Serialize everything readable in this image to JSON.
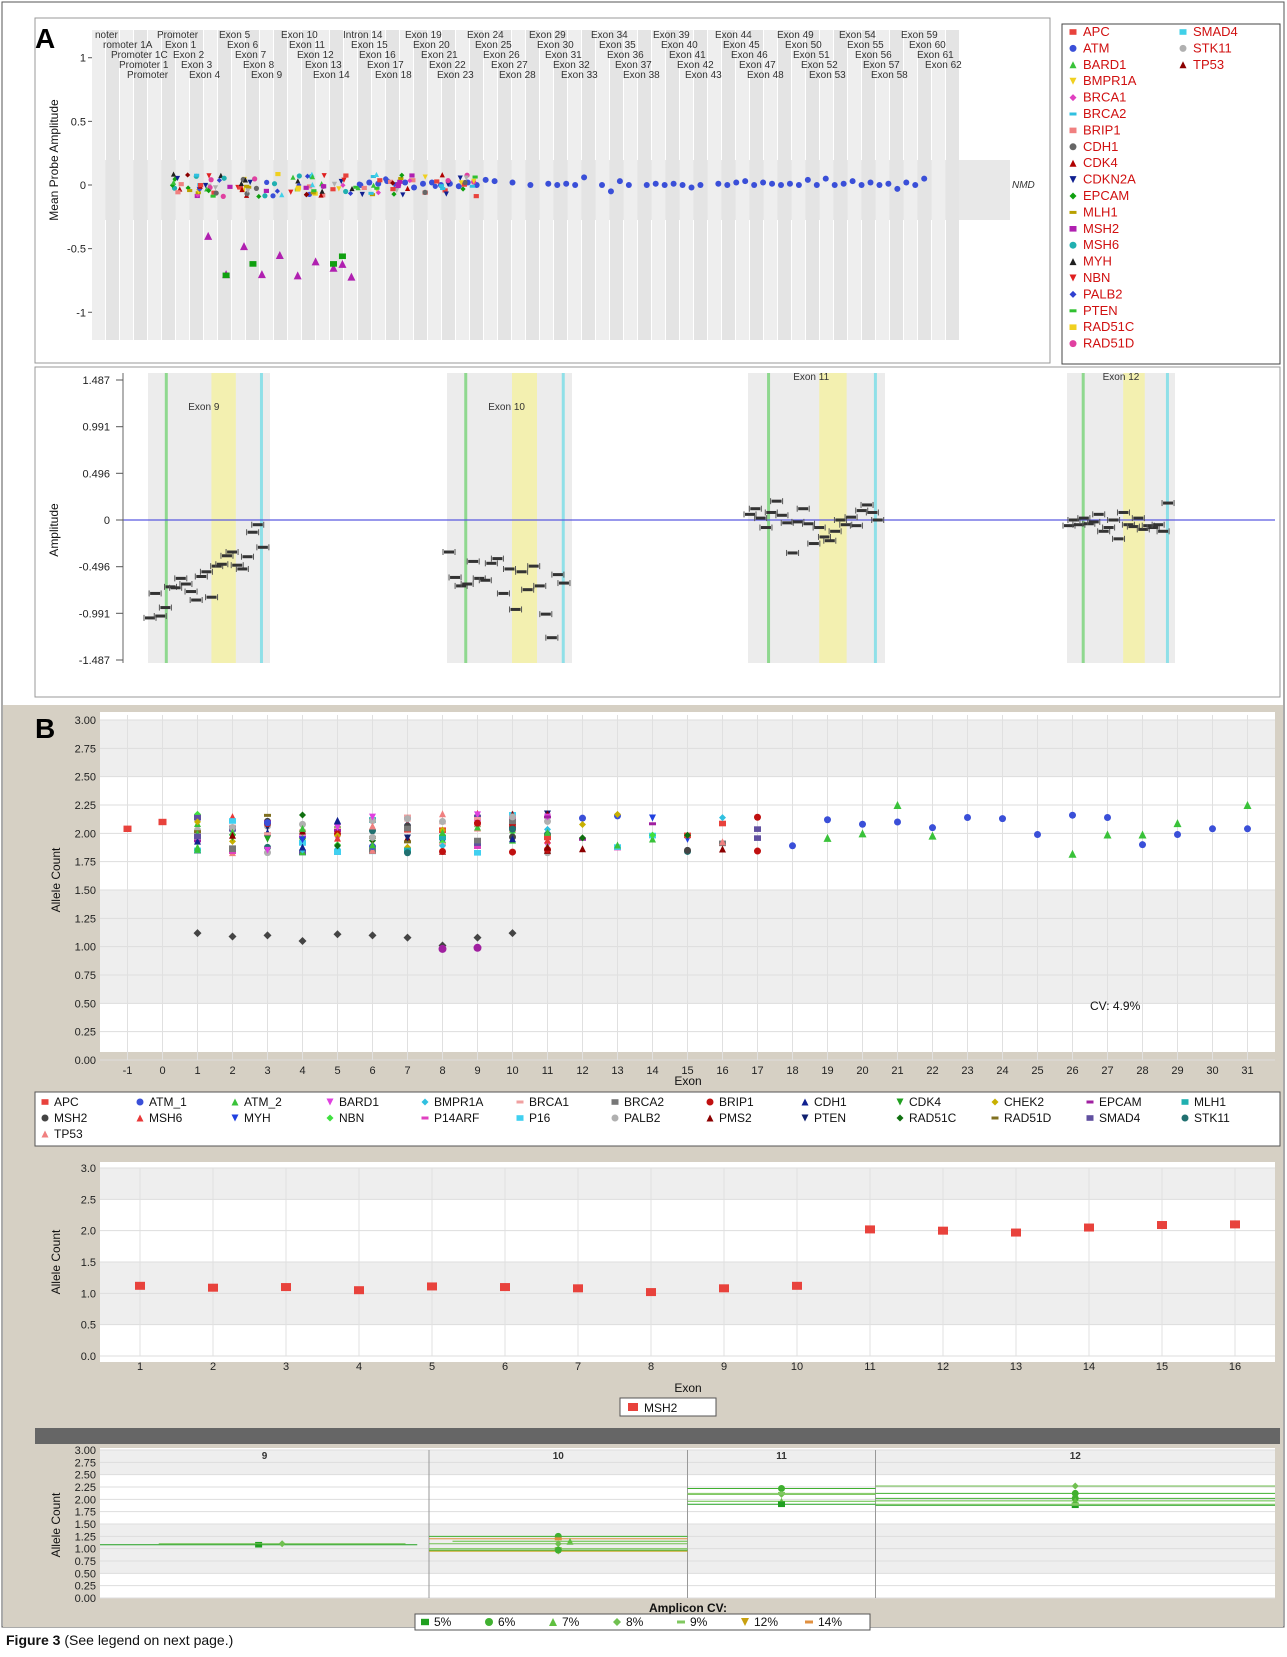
{
  "caption": {
    "figure_label": "Figure 3",
    "text": "(See legend on next page.)"
  },
  "panel_labels": {
    "a": "A",
    "b": "B"
  },
  "chart_data": [
    {
      "id": "A-top",
      "type": "scatter",
      "ylabel": "Mean Probe Amplitude",
      "yticks": [
        "1",
        "0.5",
        "0",
        "-0.5",
        "-1"
      ],
      "ylim": [
        -1.1,
        1.1
      ],
      "nmd_label": "NMD",
      "region_rows": [
        [
          "noter",
          "Promoter",
          "Exon 5",
          "Exon 10",
          "Intron 14",
          "Exon 19",
          "Exon 24",
          "Exon 29",
          "Exon 34",
          "Exon 39",
          "Exon 44",
          "Exon 49",
          "Exon 54",
          "Exon 59"
        ],
        [
          "romoter 1A",
          "Exon 1",
          "Exon 6",
          "Exon 11",
          "Exon 15",
          "Exon 20",
          "Exon 25",
          "Exon 30",
          "Exon 35",
          "Exon 40",
          "Exon 45",
          "Exon 50",
          "Exon 55",
          "Exon 60"
        ],
        [
          "Promoter 1C",
          "Exon 2",
          "Exon 7",
          "Exon 12",
          "Exon 16",
          "Exon 21",
          "Exon 26",
          "Exon 31",
          "Exon 36",
          "Exon 41",
          "Exon 46",
          "Exon 51",
          "Exon 56",
          "Exon 61"
        ],
        [
          "Promoter 1",
          "Exon 3",
          "Exon 8",
          "Exon 13",
          "Exon 17",
          "Exon 22",
          "Exon 27",
          "Exon 32",
          "Exon 37",
          "Exon 42",
          "Exon 47",
          "Exon 52",
          "Exon 57",
          "Exon 62"
        ],
        [
          "Promoter",
          "Exon 4",
          "Exon 9",
          "Exon 14",
          "Exon 18",
          "Exon 23",
          "Exon 28",
          "Exon 33",
          "Exon 38",
          "Exon 43",
          "Exon 48",
          "Exon 53",
          "Exon 58"
        ]
      ],
      "legend": [
        "APC",
        "ATM",
        "BARD1",
        "BMPR1A",
        "BRCA1",
        "BRCA2",
        "BRIP1",
        "CDH1",
        "CDK4",
        "CDKN2A",
        "EPCAM",
        "MLH1",
        "MSH2",
        "MSH6",
        "MYH",
        "NBN",
        "PALB2",
        "PTEN",
        "RAD51C",
        "RAD51D",
        "SMAD4",
        "STK11",
        "TP53"
      ],
      "legend_colors": [
        "#e8423c",
        "#3a4fd8",
        "#39c239",
        "#f0d020",
        "#e040c0",
        "#30c0e0",
        "#f08080",
        "#666666",
        "#b00000",
        "#102090",
        "#10a010",
        "#b8a000",
        "#b020b0",
        "#20b0b0",
        "#202020",
        "#e02020",
        "#3040d0",
        "#30c030",
        "#f0d020",
        "#e040a0",
        "#40d0e8",
        "#b0b0b0",
        "#8b0000"
      ],
      "atm_series": [
        [
          0.33,
          0.0
        ],
        [
          0.34,
          0.02
        ],
        [
          0.35,
          0.01
        ],
        [
          0.36,
          0.03
        ],
        [
          0.37,
          0.0
        ],
        [
          0.38,
          0.02
        ],
        [
          0.39,
          -0.02
        ],
        [
          0.4,
          0.01
        ],
        [
          0.41,
          0.02
        ],
        [
          0.42,
          0.0
        ],
        [
          0.43,
          0.01
        ],
        [
          0.44,
          -0.01
        ],
        [
          0.45,
          0.02
        ],
        [
          0.46,
          0.0
        ],
        [
          0.47,
          0.04
        ],
        [
          0.48,
          0.03
        ],
        [
          0.5,
          0.02
        ],
        [
          0.52,
          0.0
        ],
        [
          0.54,
          0.01
        ],
        [
          0.55,
          0.0
        ],
        [
          0.56,
          0.01
        ],
        [
          0.57,
          0.0
        ],
        [
          0.58,
          0.06
        ],
        [
          0.6,
          0.0
        ],
        [
          0.61,
          -0.05
        ],
        [
          0.62,
          0.03
        ],
        [
          0.63,
          0.0
        ],
        [
          0.65,
          0.0
        ],
        [
          0.66,
          0.01
        ],
        [
          0.67,
          0.0
        ],
        [
          0.68,
          0.01
        ],
        [
          0.69,
          0.0
        ],
        [
          0.7,
          -0.02
        ],
        [
          0.71,
          0.0
        ],
        [
          0.73,
          0.01
        ],
        [
          0.74,
          0.0
        ],
        [
          0.75,
          0.02
        ],
        [
          0.76,
          0.03
        ],
        [
          0.77,
          0.0
        ],
        [
          0.78,
          0.02
        ],
        [
          0.79,
          0.01
        ],
        [
          0.8,
          0.0
        ],
        [
          0.81,
          0.01
        ],
        [
          0.82,
          0.0
        ],
        [
          0.83,
          0.04
        ],
        [
          0.84,
          0.0
        ],
        [
          0.85,
          0.05
        ],
        [
          0.86,
          0.0
        ],
        [
          0.87,
          0.01
        ],
        [
          0.88,
          0.03
        ],
        [
          0.89,
          0.0
        ],
        [
          0.9,
          0.02
        ],
        [
          0.91,
          0.0
        ],
        [
          0.92,
          0.01
        ],
        [
          0.93,
          -0.03
        ],
        [
          0.94,
          0.02
        ],
        [
          0.95,
          0.0
        ],
        [
          0.96,
          0.05
        ]
      ],
      "msh2_low": [
        [
          0.16,
          -0.4
        ],
        [
          0.18,
          -0.7
        ],
        [
          0.2,
          -0.48
        ],
        [
          0.22,
          -0.7
        ],
        [
          0.24,
          -0.55
        ],
        [
          0.26,
          -0.71
        ],
        [
          0.28,
          -0.6
        ],
        [
          0.3,
          -0.65
        ],
        [
          0.31,
          -0.62
        ],
        [
          0.32,
          -0.72
        ]
      ],
      "epcam_low": [
        [
          0.18,
          -0.71
        ],
        [
          0.21,
          -0.62
        ],
        [
          0.3,
          -0.62
        ],
        [
          0.31,
          -0.56
        ]
      ],
      "legend_extra": [
        "SMAD4",
        "STK11",
        "TP53"
      ]
    },
    {
      "id": "A-bottom",
      "type": "scatter",
      "ylabel": "Amplitude",
      "yticks": [
        "1.487",
        "0.991",
        "0.496",
        "0",
        "-0.496",
        "-0.991",
        "-1.487"
      ],
      "ylim": [
        -1.487,
        1.487
      ],
      "exon_labels": [
        "Exon 9",
        "Exon 10",
        "Exon 11",
        "Exon 12"
      ],
      "points_exon9": [
        -1.04,
        -0.78,
        -1.02,
        -0.93,
        -0.71,
        -0.72,
        -0.62,
        -0.68,
        -0.76,
        -0.85,
        -0.6,
        -0.55,
        -0.82,
        -0.49,
        -0.47,
        -0.38,
        -0.34,
        -0.48,
        -0.52,
        -0.39,
        -0.13,
        -0.05,
        -0.29
      ],
      "points_exon10": [
        -0.34,
        -0.61,
        -0.7,
        -0.68,
        -0.44,
        -0.62,
        -0.64,
        -0.46,
        -0.41,
        -0.78,
        -0.52,
        -0.95,
        -0.55,
        -0.74,
        -0.49,
        -0.7,
        -1.0,
        -1.25,
        -0.58,
        -0.67
      ],
      "points_exon11": [
        0.06,
        0.12,
        0.02,
        -0.08,
        0.08,
        0.2,
        0.05,
        -0.03,
        -0.35,
        -0.02,
        0.12,
        -0.04,
        -0.25,
        -0.08,
        -0.18,
        -0.22,
        -0.12,
        0.0,
        -0.05,
        0.03,
        -0.06,
        0.1,
        0.16,
        0.08,
        0.0
      ],
      "points_exon12": [
        -0.06,
        0.0,
        -0.05,
        0.02,
        -0.04,
        -0.02,
        0.06,
        -0.12,
        -0.08,
        0.0,
        -0.2,
        0.08,
        -0.05,
        -0.07,
        0.02,
        -0.1,
        -0.06,
        -0.08,
        -0.05,
        -0.12,
        0.18
      ]
    },
    {
      "id": "B-top",
      "type": "scatter",
      "xlabel": "Exon",
      "ylabel": "Allele Count",
      "xticks": [
        "-1",
        "0",
        "1",
        "2",
        "3",
        "4",
        "5",
        "6",
        "7",
        "8",
        "9",
        "10",
        "11",
        "12",
        "13",
        "14",
        "15",
        "16",
        "17",
        "18",
        "19",
        "20",
        "21",
        "22",
        "23",
        "24",
        "25",
        "26",
        "27",
        "28",
        "29",
        "30",
        "31"
      ],
      "yticks": [
        "3.00",
        "2.75",
        "2.50",
        "2.25",
        "2.00",
        "1.75",
        "1.50",
        "1.25",
        "1.00",
        "0.75",
        "0.50",
        "0.25",
        "0.00"
      ],
      "ylim": [
        0,
        3
      ],
      "xlim": [
        -1.5,
        31.5
      ],
      "cv_label": "CV: 4.9%",
      "msh2_points": [
        [
          1,
          1.12
        ],
        [
          2,
          1.09
        ],
        [
          3,
          1.1
        ],
        [
          4,
          1.05
        ],
        [
          5,
          1.11
        ],
        [
          6,
          1.1
        ],
        [
          7,
          1.08
        ],
        [
          8,
          1.01
        ],
        [
          9,
          1.08
        ],
        [
          10,
          1.12
        ]
      ],
      "epcam_points": [
        [
          8,
          0.98
        ],
        [
          9,
          0.99
        ]
      ],
      "apc_points": [
        [
          -1,
          2.04
        ],
        [
          0,
          2.1
        ]
      ],
      "atm_points": [
        [
          18,
          1.89
        ],
        [
          19,
          2.12
        ],
        [
          20,
          2.08
        ],
        [
          21,
          2.1
        ],
        [
          22,
          2.05
        ],
        [
          23,
          2.14
        ],
        [
          24,
          2.13
        ],
        [
          25,
          1.99
        ],
        [
          26,
          2.16
        ],
        [
          27,
          2.14
        ],
        [
          28,
          1.9
        ],
        [
          29,
          1.99
        ],
        [
          30,
          2.04
        ],
        [
          31,
          2.04
        ]
      ],
      "atm2_points": [
        [
          19,
          1.96
        ],
        [
          20,
          2.0
        ],
        [
          21,
          2.25
        ],
        [
          22,
          1.98
        ],
        [
          26,
          1.82
        ],
        [
          27,
          1.99
        ],
        [
          28,
          1.99
        ],
        [
          29,
          2.09
        ],
        [
          31,
          2.25
        ]
      ],
      "legend": [
        "APC",
        "ATM_1",
        "ATM_2",
        "BARD1",
        "BMPR1A",
        "BRCA1",
        "BRCA2",
        "BRIP1",
        "CDH1",
        "CDK4",
        "CHEK2",
        "EPCAM",
        "MLH1",
        "MSH2",
        "MSH6",
        "MYH",
        "NBN",
        "P14ARF",
        "P16",
        "PALB2",
        "PMS2",
        "PTEN",
        "RAD51C",
        "RAD51D",
        "SMAD4",
        "STK11",
        "TP53"
      ],
      "legend_colors": [
        "#e8423c",
        "#3a4fd8",
        "#39c239",
        "#e040e0",
        "#30c0e0",
        "#f0a0a0",
        "#777777",
        "#c01010",
        "#102090",
        "#20a020",
        "#c8b000",
        "#a020a0",
        "#20b0b0",
        "#444444",
        "#e83838",
        "#2040e0",
        "#40e040",
        "#e040c0",
        "#40d0f0",
        "#b0b0b0",
        "#8b0000",
        "#102070",
        "#107010",
        "#807020",
        "#6050a0",
        "#207070",
        "#f08080"
      ]
    },
    {
      "id": "B-middle",
      "type": "scatter",
      "xlabel": "Exon",
      "ylabel": "Allele Count",
      "xticks": [
        "1",
        "2",
        "3",
        "4",
        "5",
        "6",
        "7",
        "8",
        "9",
        "10",
        "11",
        "12",
        "13",
        "14",
        "15",
        "16"
      ],
      "yticks": [
        "3.0",
        "2.5",
        "2.0",
        "1.5",
        "1.0",
        "0.5",
        "0.0"
      ],
      "ylim": [
        0,
        3
      ],
      "series": [
        {
          "name": "MSH2",
          "x": [
            1,
            2,
            3,
            4,
            5,
            6,
            7,
            8,
            9,
            10,
            11,
            12,
            13,
            14,
            15,
            16
          ],
          "values": [
            1.12,
            1.09,
            1.1,
            1.05,
            1.11,
            1.1,
            1.08,
            1.02,
            1.08,
            1.12,
            2.02,
            2.0,
            1.97,
            2.05,
            2.09,
            2.1
          ]
        }
      ],
      "legend": [
        "MSH2"
      ]
    },
    {
      "id": "B-bottom",
      "type": "scatter",
      "ylabel": "Allele Count",
      "yticks": [
        "3.00",
        "2.75",
        "2.50",
        "2.25",
        "2.00",
        "1.75",
        "1.50",
        "1.25",
        "1.00",
        "0.75",
        "0.50",
        "0.25",
        "0.00"
      ],
      "ylim": [
        0,
        3
      ],
      "exon_labels": [
        "9",
        "10",
        "11",
        "12"
      ],
      "legend_title": "Amplicon CV:",
      "legend": [
        "5%",
        "6%",
        "7%",
        "8%",
        "9%",
        "12%",
        "14%"
      ],
      "segments": [
        {
          "x0": 0.0,
          "x1": 0.27,
          "y": 1.08,
          "cv": "5%"
        },
        {
          "x0": 0.05,
          "x1": 0.26,
          "y": 1.1,
          "cv": "8%"
        },
        {
          "x0": 0.28,
          "x1": 0.5,
          "y": 1.25,
          "cv": "6%"
        },
        {
          "x0": 0.28,
          "x1": 0.5,
          "y": 1.2,
          "cv": "14%"
        },
        {
          "x0": 0.3,
          "x1": 0.5,
          "y": 1.15,
          "cv": "7%"
        },
        {
          "x0": 0.28,
          "x1": 0.5,
          "y": 1.1,
          "cv": "8%"
        },
        {
          "x0": 0.28,
          "x1": 0.5,
          "y": 1.0,
          "cv": "9%"
        },
        {
          "x0": 0.28,
          "x1": 0.5,
          "y": 0.95,
          "cv": "12%"
        },
        {
          "x0": 0.28,
          "x1": 0.5,
          "y": 0.97,
          "cv": "6%"
        },
        {
          "x0": 0.5,
          "x1": 0.66,
          "y": 2.22,
          "cv": "6%"
        },
        {
          "x0": 0.5,
          "x1": 0.66,
          "y": 2.1,
          "cv": "8%"
        },
        {
          "x0": 0.5,
          "x1": 0.66,
          "y": 1.96,
          "cv": "7%"
        },
        {
          "x0": 0.5,
          "x1": 0.66,
          "y": 1.9,
          "cv": "5%"
        },
        {
          "x0": 0.5,
          "x1": 0.66,
          "y": 2.12,
          "cv": "9%"
        },
        {
          "x0": 0.66,
          "x1": 1.0,
          "y": 2.27,
          "cv": "8%"
        },
        {
          "x0": 0.66,
          "x1": 1.0,
          "y": 2.12,
          "cv": "6%"
        },
        {
          "x0": 0.66,
          "x1": 1.0,
          "y": 2.02,
          "cv": "6%"
        },
        {
          "x0": 0.66,
          "x1": 1.0,
          "y": 1.97,
          "cv": "7%"
        },
        {
          "x0": 0.66,
          "x1": 1.0,
          "y": 1.88,
          "cv": "5%"
        },
        {
          "x0": 0.66,
          "x1": 1.0,
          "y": 1.9,
          "cv": "9%"
        }
      ],
      "cv_colors": {
        "5%": "#20a020",
        "6%": "#40b030",
        "7%": "#60c040",
        "8%": "#70c050",
        "9%": "#80c860",
        "12%": "#c8a010",
        "14%": "#e09040"
      }
    }
  ]
}
